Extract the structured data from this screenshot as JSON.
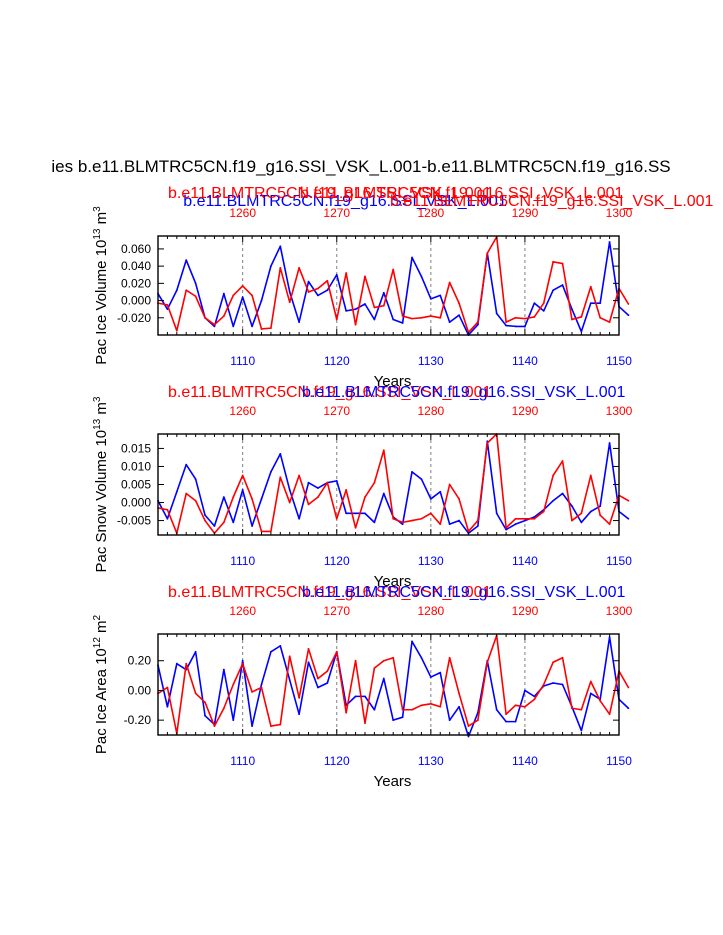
{
  "colors": {
    "case_a": "#0000ff",
    "case_b": "#ff0000",
    "axis": "#000000",
    "grid": "#808080"
  },
  "figure_title": "ies b.e11.BLMTRC5CN.f19_g16.SSI_VSK_L.001-b.e11.BLMTRC5CN.f19_g16.SS",
  "top_headers": {
    "blue": "b.e11.BLMTRC5CN.f19_g16.SSI_VSK_L.001",
    "red_main": "b.e11.BLMTRC5CN.f19_g16.SSI_VSK_L.001",
    "red_overlap": "b.e11.BLMTRC5CN.f19_g16.SSI_VSK_L.001",
    "red_right": "b.e11.BLMTRC5CN.f19_g16.SSI_VSK_L.001"
  },
  "chart_data": [
    {
      "type": "line",
      "ylabel": "Pac Ice Volume 10",
      "ylabel_exp": "13",
      "ylabel_unit": " m",
      "ylabel_unit_exp": "3",
      "xlabel": "Years",
      "ylim": [
        -0.04,
        0.075
      ],
      "yticks": [
        -0.02,
        0.0,
        0.02,
        0.04,
        0.06
      ],
      "ytick_labels": [
        "-0.020",
        "0.000",
        "0.020",
        "0.040",
        "0.060"
      ],
      "header_red": "b.e11.BLMTRC5CN.f19_g16.SSI_VSK_L.001",
      "header_blue": "b.e11.BLMTRC5CN.f19_g16.SSI_VSK_L.001",
      "x_bottom": {
        "range": [
          1101,
          1150
        ],
        "ticks": [
          1110,
          1120,
          1130,
          1140,
          1150
        ],
        "labels": [
          "1110",
          "1120",
          "1130",
          "1140",
          "1150"
        ]
      },
      "x_top": {
        "range": [
          1251,
          1300
        ],
        "ticks": [
          1260,
          1270,
          1280,
          1290,
          1300
        ],
        "labels": [
          "1260",
          "1270",
          "1280",
          "1290",
          "1300"
        ]
      },
      "series": [
        {
          "name": "blue",
          "color": "#0000ff",
          "x_start": 1101,
          "values": [
            0.008,
            -0.01,
            0.012,
            0.047,
            0.02,
            -0.02,
            -0.03,
            0.008,
            -0.03,
            0.004,
            -0.03,
            0.0,
            0.04,
            0.063,
            0.01,
            -0.025,
            0.022,
            0.006,
            0.012,
            0.03,
            -0.012,
            -0.01,
            -0.004,
            -0.022,
            0.009,
            -0.022,
            -0.026,
            0.05,
            0.028,
            0.002,
            0.006,
            -0.025,
            -0.017,
            -0.04,
            -0.028,
            0.055,
            -0.015,
            -0.029,
            -0.03,
            -0.03,
            -0.003,
            -0.012,
            0.012,
            0.018,
            -0.01,
            -0.036,
            -0.003,
            -0.003,
            0.068,
            -0.007,
            -0.017
          ]
        },
        {
          "name": "red",
          "color": "#ff0000",
          "x_start": 1101,
          "values": [
            -0.003,
            -0.005,
            -0.035,
            0.012,
            0.005,
            -0.02,
            -0.028,
            -0.018,
            0.006,
            0.017,
            0.006,
            -0.033,
            -0.032,
            0.038,
            -0.002,
            0.038,
            0.01,
            0.014,
            0.023,
            -0.022,
            0.032,
            -0.028,
            0.028,
            -0.008,
            -0.006,
            0.036,
            -0.018,
            -0.021,
            -0.02,
            -0.018,
            -0.02,
            0.021,
            -0.003,
            -0.037,
            -0.025,
            0.055,
            0.074,
            -0.025,
            -0.02,
            -0.021,
            -0.019,
            -0.003,
            0.045,
            0.043,
            -0.022,
            -0.019,
            0.016,
            -0.02,
            -0.025,
            0.014,
            -0.004
          ]
        }
      ]
    },
    {
      "type": "line",
      "ylabel": "Pac Snow Volume 10",
      "ylabel_exp": "13",
      "ylabel_unit": " m",
      "ylabel_unit_exp": "3",
      "xlabel": "Years",
      "ylim": [
        -0.009,
        0.019
      ],
      "yticks": [
        -0.005,
        0.0,
        0.005,
        0.01,
        0.015
      ],
      "ytick_labels": [
        "-0.005",
        "0.000",
        "0.005",
        "0.010",
        "0.015"
      ],
      "header_red": "b.e11.BLMTRC5CN.f19_g16.SSI_VSK_L.001",
      "header_blue": "b.e11.BLMTRC5CN.f19_g16.SSI_VSK_L.001",
      "x_bottom": {
        "range": [
          1101,
          1150
        ],
        "ticks": [
          1110,
          1120,
          1130,
          1140,
          1150
        ],
        "labels": [
          "1110",
          "1120",
          "1130",
          "1140",
          "1150"
        ]
      },
      "x_top": {
        "range": [
          1251,
          1300
        ],
        "ticks": [
          1260,
          1270,
          1280,
          1290,
          1300
        ],
        "labels": [
          "1260",
          "1270",
          "1280",
          "1290",
          "1300"
        ]
      },
      "series": [
        {
          "name": "blue",
          "color": "#0000ff",
          "x_start": 1101,
          "values": [
            0.0005,
            -0.0045,
            0.003,
            0.0105,
            0.0065,
            -0.0035,
            -0.0065,
            0.0015,
            -0.0055,
            0.0035,
            -0.0065,
            0.001,
            0.0085,
            0.0135,
            0.0035,
            -0.0045,
            0.0055,
            0.004,
            0.0055,
            0.006,
            -0.003,
            -0.003,
            -0.003,
            -0.0055,
            0.0025,
            -0.004,
            -0.006,
            0.0085,
            0.0065,
            0.001,
            0.003,
            -0.006,
            -0.005,
            -0.0085,
            -0.0065,
            0.017,
            -0.003,
            -0.0075,
            -0.006,
            -0.005,
            -0.004,
            -0.002,
            0.0005,
            0.0025,
            -0.001,
            -0.0055,
            -0.0025,
            -0.001,
            0.0165,
            -0.0025,
            -0.0045
          ]
        },
        {
          "name": "red",
          "color": "#ff0000",
          "x_start": 1101,
          "values": [
            -0.0015,
            -0.002,
            -0.0085,
            0.0025,
            0.0005,
            -0.005,
            -0.0085,
            -0.0055,
            0.0015,
            0.0075,
            0.001,
            -0.008,
            -0.008,
            0.007,
            0.0,
            0.0075,
            -0.0005,
            0.0015,
            0.0055,
            -0.0045,
            0.0035,
            -0.007,
            0.0015,
            0.0055,
            0.0145,
            -0.0045,
            -0.0055,
            -0.005,
            -0.0045,
            -0.003,
            -0.006,
            0.005,
            0.001,
            -0.008,
            -0.005,
            0.0165,
            0.019,
            -0.007,
            -0.0045,
            -0.0045,
            -0.0045,
            -0.0025,
            0.0075,
            0.0115,
            -0.005,
            -0.003,
            0.0075,
            -0.0035,
            -0.006,
            0.002,
            0.0005
          ]
        }
      ]
    },
    {
      "type": "line",
      "ylabel": "Pac Ice Area 10",
      "ylabel_exp": "12",
      "ylabel_unit": " m",
      "ylabel_unit_exp": "2",
      "xlabel": "Years",
      "ylim": [
        -0.3,
        0.38
      ],
      "yticks": [
        -0.2,
        0.0,
        0.2
      ],
      "ytick_labels": [
        "-0.20",
        "0.00",
        "0.20"
      ],
      "header_red": "b.e11.BLMTRC5CN.f19_g16.SSI_VSK_L.001",
      "header_blue": "b.e11.BLMTRC5CN.f19_g16.SSI_VSK_L.001",
      "x_bottom": {
        "range": [
          1101,
          1150
        ],
        "ticks": [
          1110,
          1120,
          1130,
          1140,
          1150
        ],
        "labels": [
          "1110",
          "1120",
          "1130",
          "1140",
          "1150"
        ]
      },
      "x_top": {
        "range": [
          1251,
          1300
        ],
        "ticks": [
          1260,
          1270,
          1280,
          1290,
          1300
        ],
        "labels": [
          "1260",
          "1270",
          "1280",
          "1290",
          "1300"
        ]
      },
      "series": [
        {
          "name": "blue",
          "color": "#0000ff",
          "x_start": 1101,
          "values": [
            0.17,
            -0.11,
            0.18,
            0.14,
            0.26,
            -0.17,
            -0.23,
            0.14,
            -0.2,
            0.2,
            -0.24,
            0.04,
            0.26,
            0.3,
            0.07,
            -0.16,
            0.19,
            0.02,
            0.05,
            0.26,
            -0.1,
            -0.04,
            -0.04,
            -0.13,
            0.08,
            -0.2,
            -0.18,
            0.33,
            0.22,
            0.09,
            0.12,
            -0.2,
            -0.11,
            -0.31,
            -0.15,
            0.2,
            -0.13,
            -0.21,
            -0.21,
            0.0,
            -0.04,
            0.03,
            0.05,
            0.04,
            -0.11,
            -0.27,
            -0.02,
            -0.06,
            0.36,
            -0.06,
            -0.12
          ]
        },
        {
          "name": "red",
          "color": "#ff0000",
          "x_start": 1101,
          "values": [
            -0.02,
            0.02,
            -0.29,
            0.18,
            -0.02,
            -0.08,
            -0.24,
            -0.12,
            0.04,
            0.18,
            -0.01,
            0.02,
            -0.24,
            -0.23,
            0.23,
            -0.05,
            0.28,
            0.08,
            0.13,
            0.26,
            -0.15,
            0.2,
            -0.22,
            0.15,
            0.2,
            0.22,
            -0.13,
            -0.13,
            -0.1,
            -0.09,
            -0.11,
            0.22,
            -0.02,
            -0.24,
            -0.2,
            0.19,
            0.37,
            -0.16,
            -0.1,
            -0.11,
            -0.06,
            0.04,
            0.19,
            0.22,
            -0.12,
            -0.13,
            0.06,
            -0.07,
            -0.16,
            0.13,
            0.02
          ]
        }
      ]
    }
  ]
}
